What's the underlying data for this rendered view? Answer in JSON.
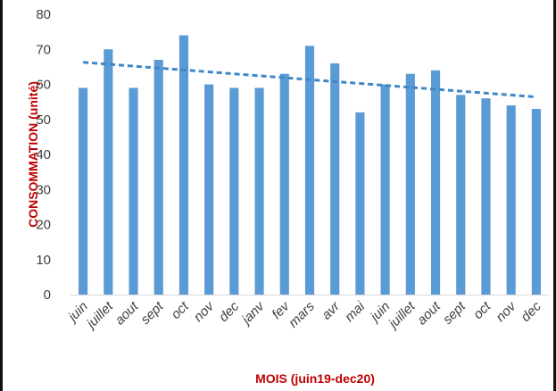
{
  "chart_data": {
    "type": "bar",
    "categories": [
      "juin",
      "juillet",
      "aout",
      "sept",
      "oct",
      "nov",
      "dec",
      "janv",
      "fev",
      "mars",
      "avr",
      "mai",
      "juin",
      "juillet",
      "aout",
      "sept",
      "oct",
      "nov",
      "dec"
    ],
    "values": [
      59,
      70,
      59,
      67,
      74,
      60,
      59,
      59,
      63,
      71,
      66,
      52,
      60,
      63,
      64,
      57,
      56,
      54,
      53
    ],
    "trendline": {
      "type": "linear",
      "start": 66.3,
      "end": 56.4
    },
    "xlabel": "MOIS (juin19-dec20)",
    "ylabel": "CONSOMMATION (unité)",
    "ylim": [
      0,
      80
    ],
    "yticks": [
      0,
      10,
      20,
      30,
      40,
      50,
      60,
      70,
      80
    ],
    "grid": false,
    "colors": {
      "bar": "#5b9bd5",
      "trendline": "#3d87c9",
      "axis_title": "#c00000",
      "tick": "#404040"
    }
  }
}
